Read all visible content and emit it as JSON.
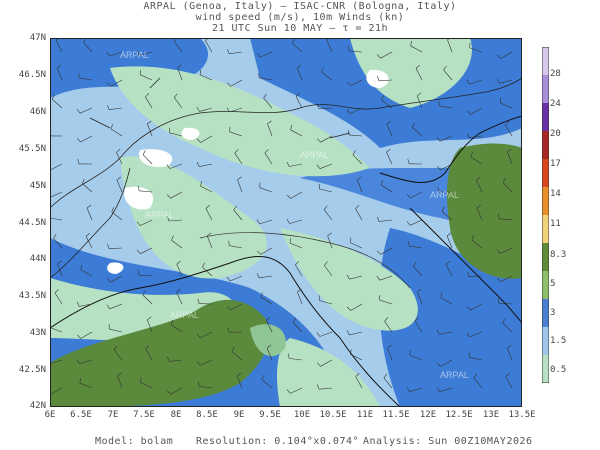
{
  "header": {
    "line1": "ARPAL (Genoa, Italy)  —  ISAC-CNR (Bologna, Italy)",
    "line2": "wind speed (m/s), 10m Winds (kn)",
    "line3": "21 UTC Sun 10 MAY  —  τ = 21h"
  },
  "y_axis": [
    "47N",
    "46.5N",
    "46N",
    "45.5N",
    "45N",
    "44.5N",
    "44N",
    "43.5N",
    "43N",
    "42.5N",
    "42N"
  ],
  "x_axis": [
    "6E",
    "6.5E",
    "7E",
    "7.5E",
    "8E",
    "8.5E",
    "9E",
    "9.5E",
    "10E",
    "10.5E",
    "11E",
    "11.5E",
    "12E",
    "12.5E",
    "13E",
    "13.5E"
  ],
  "colorbar": {
    "labels": [
      "28",
      "24",
      "20",
      "17",
      "14",
      "11",
      "8.3",
      "5",
      "3",
      "1.5",
      "0.5"
    ],
    "colors": [
      "#d8c8ee",
      "#a88fd8",
      "#6a2fa6",
      "#a82828",
      "#d84820",
      "#e8902a",
      "#f2d27a",
      "#5e8c3a",
      "#8dbf6c",
      "#4a7fd0",
      "#9ec7ea",
      "#b8e0c4"
    ]
  },
  "map_colors": {
    "green": "#5b8a3c",
    "light_green": "#8fc695",
    "blue": "#3d7cd6",
    "light_blue": "#a6cceb",
    "mint": "#b6e2c3",
    "white": "#ffffff"
  },
  "watermark": "ARPAL",
  "footer": {
    "model": "Model: bolam",
    "resolution": "Resolution: 0.104°x0.074°",
    "analysis": "Analysis: Sun 00Z10MAY2026"
  }
}
